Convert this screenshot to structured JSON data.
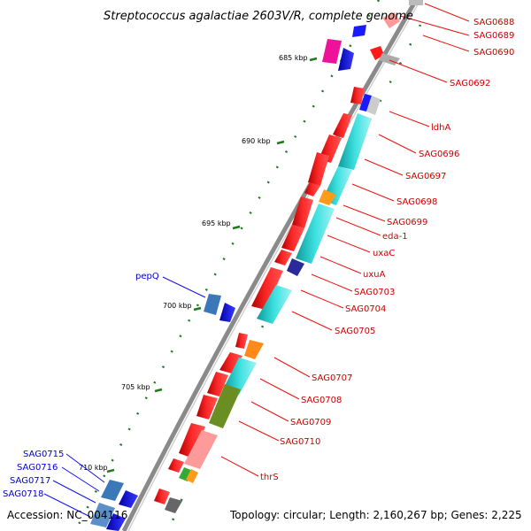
{
  "map": {
    "title": "Streptococcus agalactiae 2603V/R, complete genome",
    "accession": "Accession: NC_004116",
    "topology": "Topology: circular; Length: 2,160,267 bp; Genes: 2,225",
    "scale_labels": [
      "685 kbp",
      "690 kbp",
      "695 kbp",
      "700 kbp",
      "705 kbp",
      "710 kbp"
    ],
    "forward_genes": [
      "SAG0688",
      "SAG0689",
      "SAG0690",
      "SAG0692",
      "ldhA",
      "SAG0696",
      "SAG0697",
      "SAG0698",
      "SAG0699",
      "eda-1",
      "uxaC",
      "uxuA",
      "SAG0703",
      "SAG0704",
      "SAG0705",
      "SAG0707",
      "SAG0708",
      "SAG0709",
      "SAG0710",
      "thrS"
    ],
    "reverse_genes": [
      "pepQ",
      "SAG0715",
      "SAG0716",
      "SAG0717",
      "SAG0718"
    ],
    "colors": {
      "forward_cds": "#ff1a1a",
      "reverse_cds": "#1a1aff",
      "orf": "#22cccc",
      "backbone": "#8a8a8a",
      "ticks": "#1f7a1f",
      "forward_label": "#cc0000",
      "reverse_label": "#0000cc"
    }
  }
}
